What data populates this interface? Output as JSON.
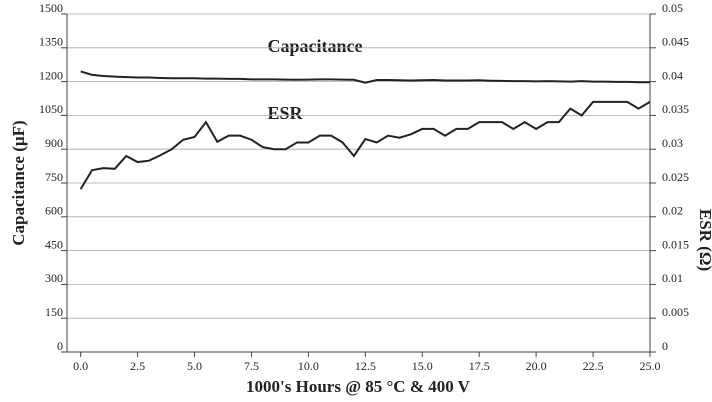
{
  "chart_data": {
    "type": "line",
    "annotations": [
      "Capacitance",
      "ESR"
    ],
    "x_label": "1000's Hours @ 85 °C & 400 V",
    "y_label": "Capacitance (µF)",
    "y2_label": "ESR (Ω)",
    "x": [
      0,
      0.5,
      1,
      1.5,
      2,
      2.5,
      3,
      3.5,
      4,
      4.5,
      5,
      5.5,
      6,
      6.5,
      7,
      7.5,
      8,
      8.5,
      9,
      9.5,
      10,
      10.5,
      11,
      11.5,
      12,
      12.5,
      13,
      13.5,
      14,
      14.5,
      15,
      15.5,
      16,
      16.5,
      17,
      17.5,
      18,
      18.5,
      19,
      19.5,
      20,
      20.5,
      21,
      21.5,
      22,
      22.5,
      23,
      23.5,
      24,
      24.5,
      25
    ],
    "series": [
      {
        "name": "Capacitance",
        "color": "#222222",
        "values": [
          1245,
          1230,
          1225,
          1222,
          1220,
          1218,
          1218,
          1216,
          1215,
          1215,
          1215,
          1213,
          1213,
          1212,
          1212,
          1210,
          1210,
          1210,
          1209,
          1208,
          1209,
          1210,
          1210,
          1209,
          1208,
          1195,
          1207,
          1207,
          1206,
          1205,
          1206,
          1207,
          1205,
          1205,
          1205,
          1206,
          1204,
          1203,
          1202,
          1202,
          1201,
          1202,
          1201,
          1200,
          1202,
          1200,
          1200,
          1199,
          1199,
          1197,
          1197
        ]
      },
      {
        "name": "ESR",
        "color": "#222222",
        "axis": "y2",
        "values": [
          0.0241,
          0.0269,
          0.0272,
          0.0271,
          0.029,
          0.0281,
          0.0283,
          0.0291,
          0.03,
          0.0314,
          0.0318,
          0.034,
          0.0311,
          0.032,
          0.032,
          0.0314,
          0.0303,
          0.03,
          0.03,
          0.031,
          0.031,
          0.032,
          0.032,
          0.031,
          0.029,
          0.0315,
          0.031,
          0.032,
          0.0317,
          0.0322,
          0.033,
          0.033,
          0.032,
          0.033,
          0.033,
          0.034,
          0.034,
          0.034,
          0.033,
          0.034,
          0.033,
          0.034,
          0.034,
          0.036,
          0.035,
          0.037,
          0.037,
          0.037,
          0.037,
          0.036,
          0.037
        ]
      }
    ],
    "xlim": [
      -0.6,
      25
    ],
    "xticks": [
      {
        "value": 0,
        "label": "0.0"
      },
      2.5,
      {
        "value": 5,
        "label": "5.0"
      },
      7.5,
      {
        "value": 10,
        "label": "10.0"
      },
      12.5,
      {
        "value": 15,
        "label": "15.0"
      },
      17.5,
      {
        "value": 20,
        "label": "20.0"
      },
      22.5,
      {
        "value": 25,
        "label": "25.0"
      }
    ],
    "ylim": [
      0,
      1500
    ],
    "yticks": [
      0,
      150,
      300,
      450,
      600,
      750,
      900,
      1050,
      1200,
      1350,
      1500
    ],
    "y2lim": [
      0,
      0.05
    ],
    "y2ticks": [
      0,
      0.005,
      0.01,
      0.015,
      0.02,
      0.025,
      0.03,
      0.035,
      0.04,
      0.045,
      0.05
    ],
    "grid": true
  }
}
